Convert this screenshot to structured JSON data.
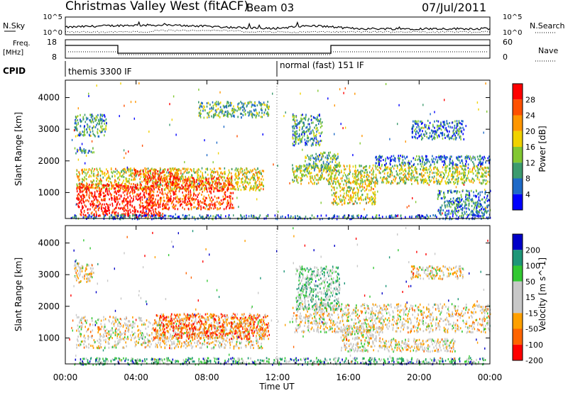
{
  "header": {
    "title": "Christmas Valley West (fitACF)",
    "beam": "Beam 03",
    "date": "07/Jul/2011"
  },
  "nsky_panel": {
    "left_label": "N.Sky",
    "right_label": "N.Search",
    "left_ticks": [
      "10^5",
      "10^0"
    ],
    "right_ticks": [
      "10^5",
      "10^0"
    ]
  },
  "freq_panel": {
    "left_label_1": "Freq.",
    "left_label_2": "[MHz]",
    "right_label": "Nave",
    "left_ticks": [
      "18",
      "8"
    ],
    "right_ticks": [
      "60",
      "0"
    ]
  },
  "cpid": {
    "label": "CPID",
    "segments": [
      {
        "start_hour": 0,
        "name": "themis 3300 IF"
      },
      {
        "start_hour": 12,
        "name": "normal (fast) 151 IF"
      }
    ]
  },
  "time_axis": {
    "label": "Time UT",
    "ticks": [
      "00:00",
      "04:00",
      "08:00",
      "12:00",
      "16:00",
      "20:00",
      "00:00"
    ]
  },
  "chart_data": [
    {
      "type": "heatmap",
      "panel": "power",
      "xlabel": "Time UT",
      "ylabel": "Slant Range [km]",
      "colorbar_label": "Power [dB]",
      "xlim_hours": [
        0,
        24
      ],
      "ylim": [
        180,
        4550
      ],
      "yticks": [
        1000,
        2000,
        3000,
        4000
      ],
      "colorbar_ticks": [
        "28",
        "24",
        "20",
        "16",
        "12",
        "8",
        "4"
      ],
      "colors": [
        "#0000ff",
        "#1e6ac8",
        "#3c9b6e",
        "#82c832",
        "#f0d200",
        "#ff9600",
        "#ff5000",
        "#ff0000"
      ],
      "regions": [
        {
          "t0": 0.6,
          "t1": 11.2,
          "r0": 1100,
          "r1": 1800,
          "level": 0.55
        },
        {
          "t0": 0.6,
          "t1": 5.0,
          "r0": 450,
          "r1": 1300,
          "level": 0.95
        },
        {
          "t0": 4.5,
          "t1": 9.5,
          "r0": 500,
          "r1": 1500,
          "level": 0.85
        },
        {
          "t0": 3.8,
          "t1": 6.5,
          "r0": 1450,
          "r1": 1750,
          "level": 0.85
        },
        {
          "t0": 0.8,
          "t1": 5.5,
          "r0": 250,
          "r1": 450,
          "level": 0.92
        },
        {
          "t0": 0.5,
          "t1": 2.3,
          "r0": 2800,
          "r1": 3500,
          "level": 0.3
        },
        {
          "t0": 0.5,
          "t1": 1.6,
          "r0": 2250,
          "r1": 2450,
          "level": 0.3
        },
        {
          "t0": 7.5,
          "t1": 11.5,
          "r0": 3400,
          "r1": 3900,
          "level": 0.35
        },
        {
          "t0": 12.8,
          "t1": 24,
          "r0": 1300,
          "r1": 1900,
          "level": 0.5
        },
        {
          "t0": 13.5,
          "t1": 15.5,
          "r0": 1700,
          "r1": 2300,
          "level": 0.35
        },
        {
          "t0": 15.0,
          "t1": 17.5,
          "r0": 650,
          "r1": 1400,
          "level": 0.55
        },
        {
          "t0": 17.5,
          "t1": 24,
          "r0": 1900,
          "r1": 2200,
          "level": 0.2
        },
        {
          "t0": 12.8,
          "t1": 14.5,
          "r0": 2500,
          "r1": 3500,
          "level": 0.3
        },
        {
          "t0": 19.5,
          "t1": 22.5,
          "r0": 2700,
          "r1": 3300,
          "level": 0.25
        },
        {
          "t0": 21.0,
          "t1": 24,
          "r0": 300,
          "r1": 1100,
          "level": 0.25
        },
        {
          "t0": 0.3,
          "t1": 24,
          "r0": 190,
          "r1": 320,
          "level": 0.2
        }
      ]
    },
    {
      "type": "heatmap",
      "panel": "velocity",
      "xlabel": "Time UT",
      "ylabel": "Slant Range [km]",
      "colorbar_label": "Velocity [m s^-1]",
      "xlim_hours": [
        0,
        24
      ],
      "ylim": [
        180,
        4550
      ],
      "yticks": [
        1000,
        2000,
        3000,
        4000
      ],
      "colorbar_ticks": [
        "200",
        "100",
        "50",
        "15",
        "-15",
        "-50",
        "-100",
        "-200"
      ],
      "colors": [
        "#ff0000",
        "#ff6400",
        "#ffa000",
        "#c8c8c8",
        "#c8c8c8",
        "#32c832",
        "#1e9678",
        "#0000c8"
      ],
      "regions": [
        {
          "t0": 0.6,
          "t1": 11.2,
          "r0": 700,
          "r1": 1700,
          "level": 0.45
        },
        {
          "t0": 5.0,
          "t1": 11.5,
          "r0": 1000,
          "r1": 1800,
          "level": 0.22
        },
        {
          "t0": 0.5,
          "t1": 1.6,
          "r0": 2800,
          "r1": 3400,
          "level": 0.45
        },
        {
          "t0": 0.5,
          "t1": 23.8,
          "r0": 190,
          "r1": 400,
          "level": 0.7
        },
        {
          "t0": 12.8,
          "t1": 24,
          "r0": 1200,
          "r1": 2100,
          "level": 0.45
        },
        {
          "t0": 13.0,
          "t1": 15.5,
          "r0": 1900,
          "r1": 3300,
          "level": 0.65
        },
        {
          "t0": 15.5,
          "t1": 17.8,
          "r0": 600,
          "r1": 1400,
          "level": 0.45
        },
        {
          "t0": 17.8,
          "t1": 22.0,
          "r0": 600,
          "r1": 1000,
          "level": 0.45
        },
        {
          "t0": 19.5,
          "t1": 22.5,
          "r0": 2900,
          "r1": 3300,
          "level": 0.45
        }
      ]
    }
  ]
}
